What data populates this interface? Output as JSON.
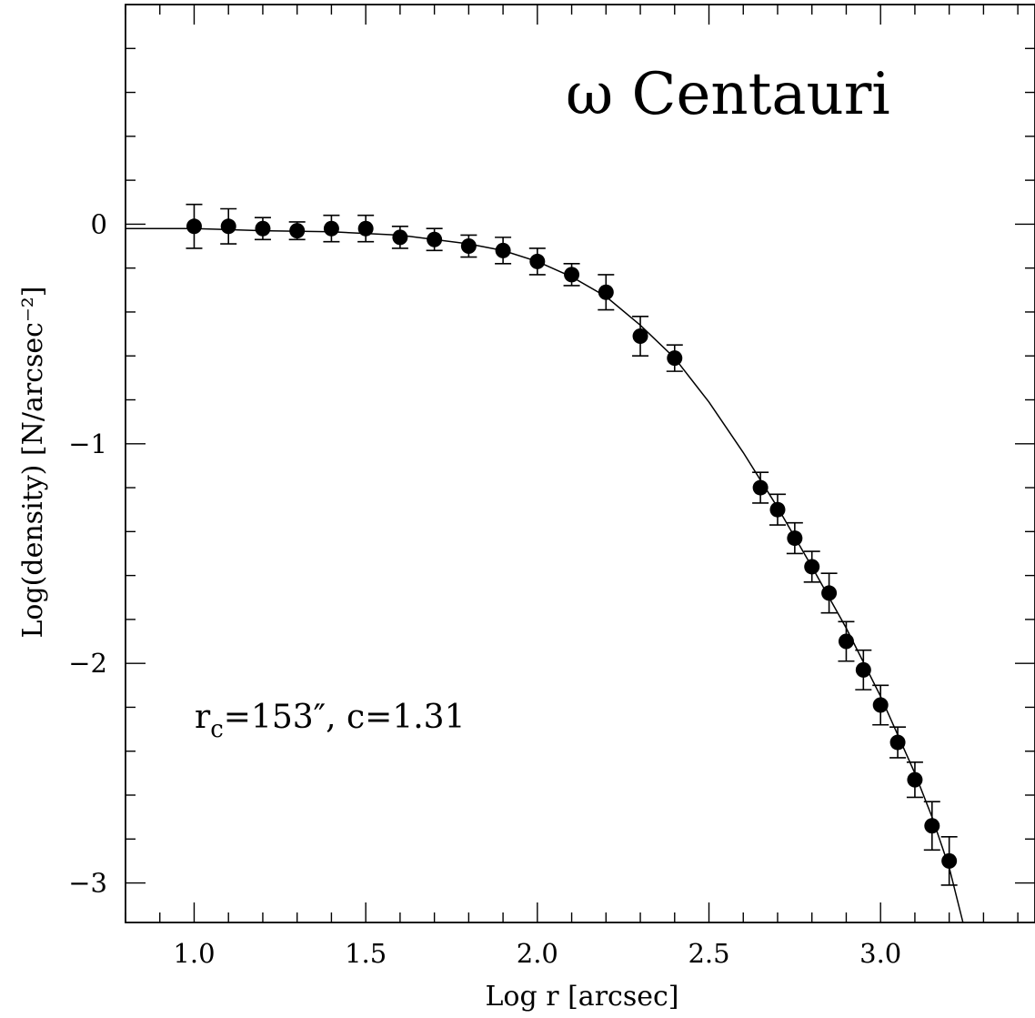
{
  "chart_data": {
    "type": "scatter",
    "title": "ω Centauri",
    "xlabel": "Log r [arcsec]",
    "ylabel": "Log(density) [N/arcsec⁻²]",
    "annotation": "rc=153″, c=1.31",
    "annotation_parts": {
      "r": "r",
      "sub": "c",
      "rest": "=153″, c=1.31"
    },
    "xlim": [
      0.8,
      3.45
    ],
    "ylim": [
      -3.18,
      1.0
    ],
    "xticks": [
      1.0,
      1.5,
      2.0,
      2.5,
      3.0
    ],
    "xtick_labels": [
      "1.0",
      "1.5",
      "2.0",
      "2.5",
      "3.0"
    ],
    "yticks": [
      0,
      -1,
      -2,
      -3
    ],
    "ytick_labels": [
      "0",
      "−1",
      "−2",
      "−3"
    ],
    "grid": false,
    "series": [
      {
        "x": [
          1.0,
          1.1,
          1.2,
          1.3,
          1.4,
          1.5,
          1.6,
          1.7,
          1.8,
          1.9,
          2.0,
          2.1,
          2.2,
          2.3,
          2.4,
          2.65,
          2.7,
          2.75,
          2.8,
          2.85,
          2.9,
          2.95,
          3.0,
          3.05,
          3.1,
          3.15,
          3.2
        ],
        "y": [
          -0.01,
          -0.01,
          -0.02,
          -0.03,
          -0.02,
          -0.02,
          -0.06,
          -0.07,
          -0.1,
          -0.12,
          -0.17,
          -0.23,
          -0.31,
          -0.51,
          -0.61,
          -1.2,
          -1.3,
          -1.43,
          -1.56,
          -1.68,
          -1.9,
          -2.03,
          -2.19,
          -2.36,
          -2.53,
          -2.74,
          -2.9
        ],
        "yerr": [
          0.1,
          0.08,
          0.05,
          0.04,
          0.06,
          0.06,
          0.05,
          0.05,
          0.05,
          0.06,
          0.06,
          0.05,
          0.08,
          0.09,
          0.06,
          0.07,
          0.07,
          0.07,
          0.07,
          0.09,
          0.09,
          0.09,
          0.09,
          0.07,
          0.08,
          0.11,
          0.11
        ]
      }
    ],
    "fit_curve": {
      "x": [
        0.8,
        1.0,
        1.2,
        1.4,
        1.6,
        1.8,
        1.9,
        2.0,
        2.1,
        2.2,
        2.3,
        2.4,
        2.5,
        2.6,
        2.7,
        2.8,
        2.9,
        3.0,
        3.1,
        3.15,
        3.2,
        3.24
      ],
      "y": [
        -0.02,
        -0.02,
        -0.03,
        -0.035,
        -0.05,
        -0.09,
        -0.12,
        -0.17,
        -0.24,
        -0.33,
        -0.46,
        -0.61,
        -0.81,
        -1.04,
        -1.29,
        -1.56,
        -1.84,
        -2.15,
        -2.5,
        -2.7,
        -2.93,
        -3.18
      ]
    }
  }
}
